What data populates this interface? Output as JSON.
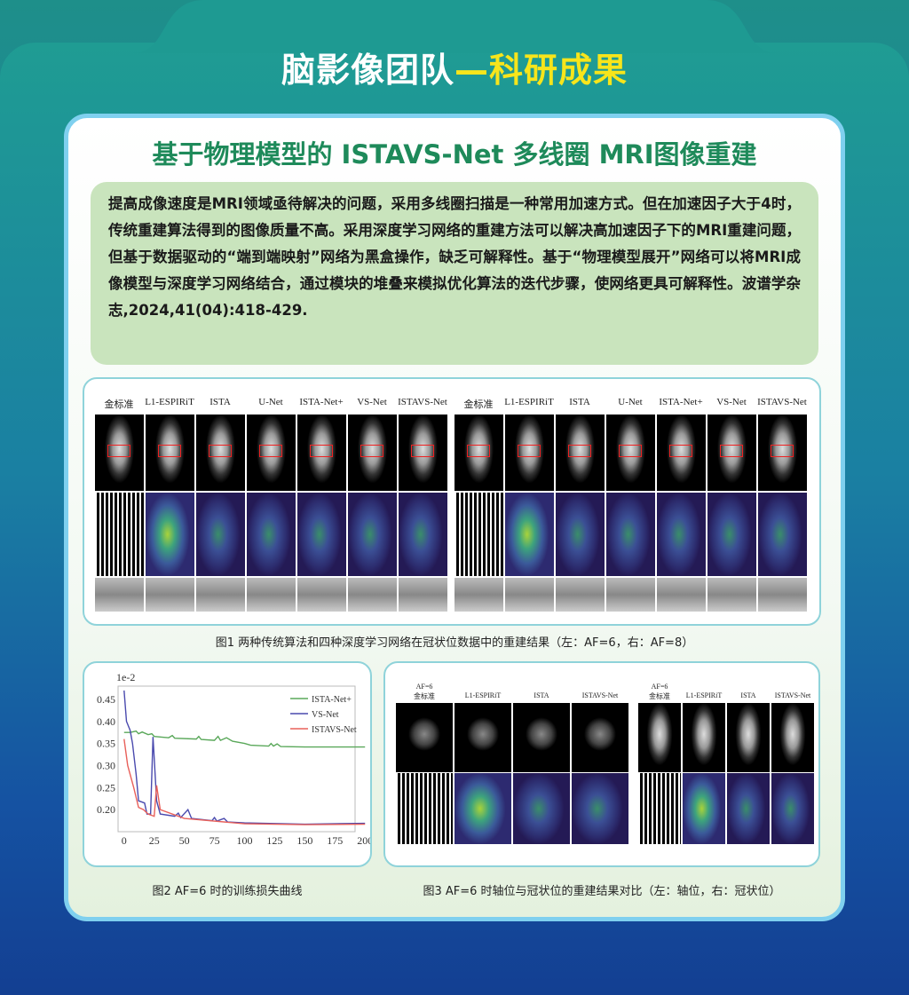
{
  "header": {
    "title_white": "脑影像团队",
    "title_yellow": "—科研成果"
  },
  "card": {
    "subtitle": "基于物理模型的 ISTAVS-Net 多线圈 MRI图像重建",
    "abstract": "提高成像速度是MRI领域亟待解决的问题，采用多线圈扫描是一种常用加速方式。但在加速因子大于4时，传统重建算法得到的图像质量不高。采用深度学习网络的重建方法可以解决高加速因子下的MRI重建问题，但基于数据驱动的“端到端映射”网络为黑盒操作，缺乏可解释性。基于“物理模型展开”网络可以将MRI成像模型与深度学习网络结合，通过模块的堆叠来模拟优化算法的迭代步骤，使网络更具可解释性。波谱学杂志,2024,41(04):418-429."
  },
  "fig1": {
    "columns": [
      "金标准",
      "L1-ESPIRiT",
      "ISTA",
      "U-Net",
      "ISTA-Net+",
      "VS-Net",
      "ISTAVS-Net",
      "金标准",
      "L1-ESPIRiT",
      "ISTA",
      "U-Net",
      "ISTA-Net+",
      "VS-Net",
      "ISTAVS-Net"
    ],
    "caption": "图1  两种传统算法和四种深度学习网络在冠状位数据中的重建结果（左：AF=6，右：AF=8）"
  },
  "fig2": {
    "caption": "图2  AF=6 时的训练损失曲线"
  },
  "fig3": {
    "columns": [
      "金标准",
      "L1-ESPIRiT",
      "ISTA",
      "ISTAVS-Net",
      "金标准",
      "L1-ESPIRiT",
      "ISTA",
      "ISTAVS-Net"
    ],
    "af_label": "AF=6",
    "caption": "图3  AF=6 时轴位与冠状位的重建结果对比（左：轴位，右：冠状位）"
  },
  "chart_data": {
    "type": "line",
    "title": "",
    "xlabel": "",
    "ylabel": "",
    "y_scale_label": "1e-2",
    "xlim": [
      -5,
      205
    ],
    "ylim": [
      0.15,
      0.48
    ],
    "xticks": [
      0,
      25,
      50,
      75,
      100,
      125,
      150,
      175,
      200
    ],
    "yticks": [
      "0.20",
      "0.25",
      "0.30",
      "0.35",
      "0.40",
      "0.45"
    ],
    "legend": "top-right",
    "grid": false,
    "series": [
      {
        "name": "ISTA-Net+",
        "color": "#5aa85a",
        "points": [
          [
            0,
            0.375
          ],
          [
            5,
            0.375
          ],
          [
            10,
            0.378
          ],
          [
            12,
            0.372
          ],
          [
            15,
            0.376
          ],
          [
            20,
            0.37
          ],
          [
            23,
            0.372
          ],
          [
            25,
            0.366
          ],
          [
            37,
            0.363
          ],
          [
            40,
            0.368
          ],
          [
            42,
            0.362
          ],
          [
            60,
            0.36
          ],
          [
            62,
            0.366
          ],
          [
            64,
            0.359
          ],
          [
            75,
            0.357
          ],
          [
            78,
            0.366
          ],
          [
            80,
            0.357
          ],
          [
            85,
            0.363
          ],
          [
            90,
            0.355
          ],
          [
            100,
            0.35
          ],
          [
            105,
            0.346
          ],
          [
            120,
            0.344
          ],
          [
            122,
            0.35
          ],
          [
            124,
            0.344
          ],
          [
            127,
            0.349
          ],
          [
            130,
            0.343
          ],
          [
            150,
            0.342
          ],
          [
            200,
            0.342
          ]
        ]
      },
      {
        "name": "VS-Net",
        "color": "#4a4aae",
        "points": [
          [
            0,
            0.47
          ],
          [
            2,
            0.4
          ],
          [
            5,
            0.38
          ],
          [
            7,
            0.35
          ],
          [
            10,
            0.28
          ],
          [
            12,
            0.22
          ],
          [
            17,
            0.215
          ],
          [
            19,
            0.19
          ],
          [
            22,
            0.19
          ],
          [
            24,
            0.365
          ],
          [
            27,
            0.22
          ],
          [
            30,
            0.19
          ],
          [
            42,
            0.185
          ],
          [
            45,
            0.192
          ],
          [
            47,
            0.182
          ],
          [
            53,
            0.2
          ],
          [
            56,
            0.18
          ],
          [
            73,
            0.175
          ],
          [
            75,
            0.182
          ],
          [
            77,
            0.174
          ],
          [
            83,
            0.18
          ],
          [
            86,
            0.172
          ],
          [
            100,
            0.17
          ],
          [
            150,
            0.167
          ],
          [
            200,
            0.169
          ]
        ]
      },
      {
        "name": "ISTAVS-Net",
        "color": "#e8605a",
        "points": [
          [
            0,
            0.36
          ],
          [
            3,
            0.3
          ],
          [
            8,
            0.25
          ],
          [
            12,
            0.205
          ],
          [
            16,
            0.2
          ],
          [
            20,
            0.19
          ],
          [
            25,
            0.185
          ],
          [
            27,
            0.255
          ],
          [
            30,
            0.2
          ],
          [
            50,
            0.18
          ],
          [
            100,
            0.168
          ],
          [
            150,
            0.166
          ],
          [
            200,
            0.167
          ]
        ]
      }
    ]
  }
}
